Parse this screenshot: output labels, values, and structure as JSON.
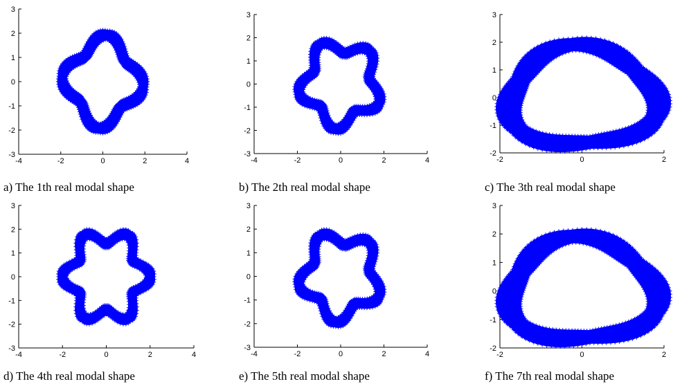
{
  "figure": {
    "background": "#ffffff",
    "shape_color": "#0000ff"
  },
  "chart_data": [
    {
      "type": "scatter",
      "caption": "a) The 1th real modal shape",
      "mode_lobes": 4,
      "mode_phase": 0.4,
      "xlim": [
        -4,
        4
      ],
      "ylim": [
        -3,
        3
      ],
      "xticks": [
        -4,
        -2,
        0,
        2,
        4
      ],
      "yticks": [
        -3,
        -2,
        -1,
        0,
        1,
        2,
        3
      ],
      "ring": {
        "inner_radius": 1.45,
        "outer_radius": 1.85,
        "amplitude": 0.28
      }
    },
    {
      "type": "scatter",
      "caption": "b) The 2th real modal shape",
      "mode_lobes": 5,
      "mode_phase": 2.2,
      "xlim": [
        -4,
        4
      ],
      "ylim": [
        -3,
        3
      ],
      "xticks": [
        -4,
        -2,
        0,
        2,
        4
      ],
      "yticks": [
        -3,
        -2,
        -1,
        0,
        1,
        2,
        3
      ],
      "ring": {
        "inner_radius": 1.45,
        "outer_radius": 1.85,
        "amplitude": 0.3
      }
    },
    {
      "type": "scatter",
      "caption": "c) The 3th real modal shape",
      "mode_lobes": 3,
      "mode_phase": 1.2,
      "xlim": [
        -2,
        2
      ],
      "ylim": [
        -2,
        3
      ],
      "xticks": [
        -2,
        0,
        2
      ],
      "yticks": [
        -2,
        -1,
        0,
        1,
        2,
        3
      ],
      "ring": {
        "inner_radius": 1.55,
        "outer_radius": 2.0,
        "amplitude": 0.15
      }
    },
    {
      "type": "scatter",
      "caption": "d) The 4th real modal shape",
      "mode_lobes": 6,
      "mode_phase": 0.0,
      "xlim": [
        -4,
        4
      ],
      "ylim": [
        -3,
        3
      ],
      "xticks": [
        -4,
        -2,
        0,
        2,
        4
      ],
      "yticks": [
        -3,
        -2,
        -1,
        0,
        1,
        2,
        3
      ],
      "ring": {
        "inner_radius": 1.5,
        "outer_radius": 1.9,
        "amplitude": 0.3
      }
    },
    {
      "type": "scatter",
      "caption": "e) The 5th real modal shape",
      "mode_lobes": 5,
      "mode_phase": 2.2,
      "xlim": [
        -4,
        4
      ],
      "ylim": [
        -3,
        3
      ],
      "xticks": [
        -4,
        -2,
        0,
        2,
        4
      ],
      "yticks": [
        -3,
        -2,
        -1,
        0,
        1,
        2,
        3
      ],
      "ring": {
        "inner_radius": 1.45,
        "outer_radius": 1.85,
        "amplitude": 0.3
      }
    },
    {
      "type": "scatter",
      "caption": "f) The 7th real modal shape",
      "mode_lobes": 3,
      "mode_phase": 1.2,
      "xlim": [
        -2,
        2
      ],
      "ylim": [
        -2,
        3
      ],
      "xticks": [
        -2,
        0,
        2
      ],
      "yticks": [
        -2,
        -1,
        0,
        1,
        2,
        3
      ],
      "ring": {
        "inner_radius": 1.55,
        "outer_radius": 2.0,
        "amplitude": 0.15
      }
    }
  ]
}
